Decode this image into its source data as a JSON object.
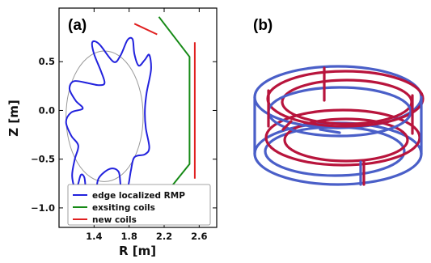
{
  "panel_a": {
    "label": "(a)",
    "legend": [
      {
        "label": "edge localized RMP",
        "color": "#2222dd"
      },
      {
        "label": "exsiting coils",
        "color": "#168a16"
      },
      {
        "label": "new coils",
        "color": "#e02020"
      }
    ]
  },
  "panel_b": {
    "label": "(b)",
    "ring_colors": {
      "blue": "#4a5fc8",
      "red": "#b8143c"
    }
  },
  "chart_data": [
    {
      "type": "line",
      "title": "",
      "xlabel": "R [m]",
      "ylabel": "Z [m]",
      "xlim": [
        1.0,
        2.8
      ],
      "ylim": [
        -1.2,
        1.05
      ],
      "x_ticks": [
        1.4,
        1.8,
        2.2,
        2.6
      ],
      "y_ticks": [
        -1.0,
        -0.5,
        0.0,
        0.5
      ],
      "x_tick_labels": [
        "1.4",
        "1.8",
        "2.2",
        "2.6"
      ],
      "y_tick_labels": [
        "−1.0",
        "−0.5",
        "0.0",
        "0.5"
      ],
      "grid": false,
      "legend_position": "lower-center",
      "series": [
        {
          "name": "edge localized RMP",
          "color": "#2222dd",
          "shape": "scalloped closed curve around the plasma boundary",
          "points": [
            [
              1.52,
              0.28
            ],
            [
              1.48,
              0.4
            ],
            [
              1.4,
              0.58
            ],
            [
              1.38,
              0.7
            ],
            [
              1.46,
              0.68
            ],
            [
              1.62,
              0.5
            ],
            [
              1.7,
              0.56
            ],
            [
              1.78,
              0.72
            ],
            [
              1.84,
              0.73
            ],
            [
              1.86,
              0.58
            ],
            [
              1.91,
              0.46
            ],
            [
              1.98,
              0.52
            ],
            [
              2.03,
              0.57
            ],
            [
              2.05,
              0.42
            ],
            [
              2.0,
              0.18
            ],
            [
              1.98,
              0.0
            ],
            [
              1.99,
              -0.18
            ],
            [
              2.03,
              -0.38
            ],
            [
              1.98,
              -0.45
            ],
            [
              1.86,
              -0.48
            ],
            [
              1.82,
              -0.62
            ],
            [
              1.78,
              -0.8
            ],
            [
              1.71,
              -0.79
            ],
            [
              1.68,
              -0.63
            ],
            [
              1.58,
              -0.6
            ],
            [
              1.45,
              -0.7
            ],
            [
              1.42,
              -0.86
            ],
            [
              1.35,
              -0.92
            ],
            [
              1.31,
              -0.84
            ],
            [
              1.29,
              -0.69
            ],
            [
              1.25,
              -0.66
            ],
            [
              1.22,
              -0.75
            ],
            [
              1.19,
              -0.83
            ],
            [
              1.15,
              -0.67
            ],
            [
              1.18,
              -0.5
            ],
            [
              1.22,
              -0.36
            ],
            [
              1.14,
              -0.26
            ],
            [
              1.08,
              -0.12
            ],
            [
              1.14,
              -0.02
            ],
            [
              1.27,
              0.02
            ],
            [
              1.19,
              0.1
            ],
            [
              1.12,
              0.22
            ],
            [
              1.17,
              0.3
            ],
            [
              1.33,
              0.28
            ],
            [
              1.45,
              0.26
            ]
          ]
        },
        {
          "name": "exsiting coils",
          "color": "#168a16",
          "segments": [
            [
              [
                2.14,
                0.96
              ],
              [
                2.49,
                0.55
              ],
              [
                2.49,
                -0.55
              ],
              [
                2.14,
                -0.94
              ]
            ]
          ]
        },
        {
          "name": "new coils",
          "color": "#e02020",
          "segments": [
            [
              [
                1.86,
                0.89
              ],
              [
                2.12,
                0.78
              ]
            ],
            [
              [
                2.55,
                0.7
              ],
              [
                2.55,
                -0.7
              ]
            ],
            [
              [
                1.86,
                -0.89
              ],
              [
                2.12,
                -0.8
              ]
            ]
          ]
        },
        {
          "name": "",
          "color": "#999999",
          "description": "thin grey plasma boundary",
          "ellipse": {
            "center": [
              1.52,
              -0.06
            ],
            "radius_r": 0.44,
            "radius_z": 0.67
          }
        }
      ]
    }
  ]
}
